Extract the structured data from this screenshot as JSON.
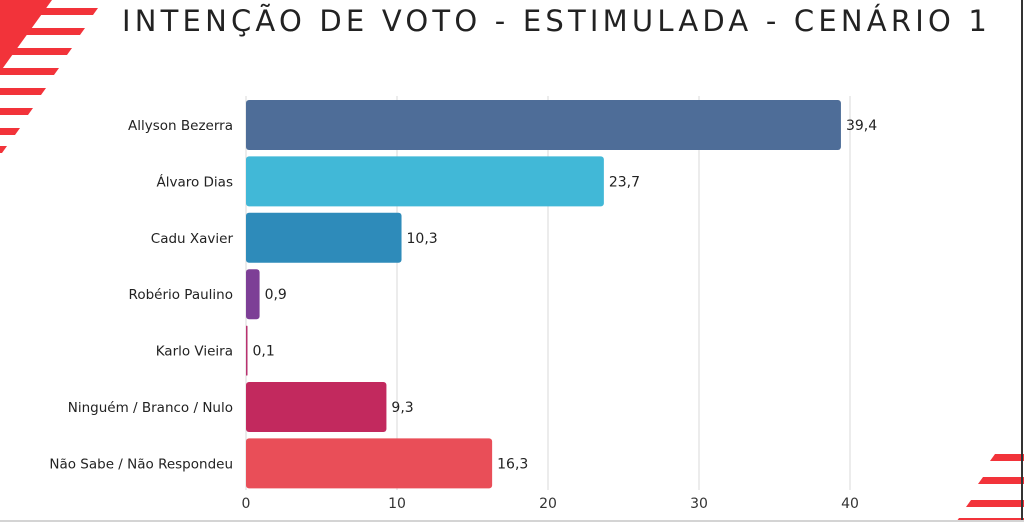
{
  "title": "INTENÇÃO DE VOTO - ESTIMULADA - CENÁRIO 1",
  "decoration": {
    "stripe_color": "#f2333a"
  },
  "chart_data": {
    "type": "bar",
    "orientation": "horizontal",
    "title": "INTENÇÃO DE VOTO - ESTIMULADA - CENÁRIO 1",
    "xlabel": "",
    "ylabel": "",
    "categories": [
      "Allyson Bezerra",
      "Álvaro Dias",
      "Cadu Xavier",
      "Robério Paulino",
      "Karlo Vieira",
      "Ninguém / Branco / Nulo",
      "Não Sabe / Não Respondeu"
    ],
    "values": [
      39.4,
      23.7,
      10.3,
      0.9,
      0.1,
      9.3,
      16.3
    ],
    "value_labels": [
      "39,4",
      "23,7",
      "10,3",
      "0,9",
      "0,1",
      "9,3",
      "16,3"
    ],
    "colors": [
      "#4e6d98",
      "#41b8d7",
      "#2e8bba",
      "#7d3f96",
      "#b8326f",
      "#c2295e",
      "#e94e58"
    ],
    "xlim": [
      0,
      40
    ],
    "xticks": [
      0,
      10,
      20,
      30,
      40
    ],
    "xtick_labels": [
      "0",
      "10",
      "20",
      "30",
      "40"
    ],
    "grid": true,
    "legend": "none"
  }
}
